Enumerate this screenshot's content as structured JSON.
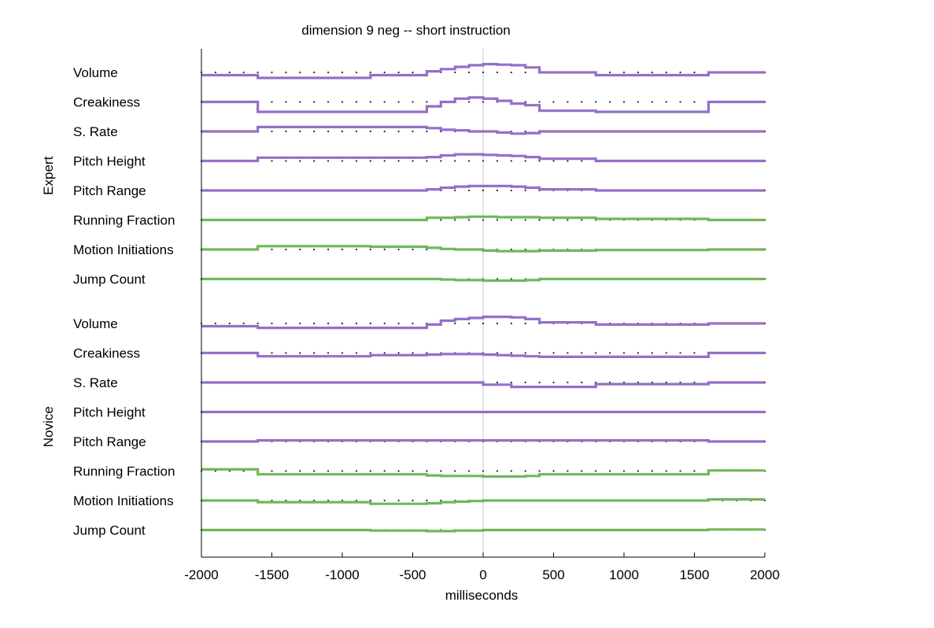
{
  "chart_data": {
    "type": "line",
    "title": "dimension 9 neg -- short instruction",
    "xlabel": "milliseconds",
    "xlim": [
      -2000,
      2000
    ],
    "xticks": [
      -2000,
      -1500,
      -1000,
      -500,
      0,
      500,
      1000,
      1500,
      2000
    ],
    "x_edges": [
      -2000,
      -1600,
      -800,
      -400,
      -300,
      -200,
      -100,
      0,
      100,
      200,
      300,
      400,
      800,
      1600,
      2000
    ],
    "zero_line": true,
    "colors": {
      "prosodic": "#9370c8",
      "motion": "#70b858",
      "dots": "#222222",
      "zero": "#c8c8c8"
    },
    "groups": [
      {
        "name": "Expert",
        "rows": [
          {
            "label": "Volume",
            "kind": "prosodic",
            "values": [
              -0.5,
              -1.0,
              -0.5,
              0.2,
              0.6,
              1.0,
              1.3,
              1.5,
              1.4,
              1.3,
              0.9,
              0.0,
              -0.5,
              0.0
            ]
          },
          {
            "label": "Creakiness",
            "kind": "prosodic",
            "values": [
              0.0,
              -1.8,
              -1.8,
              -0.8,
              0.0,
              0.6,
              0.8,
              0.6,
              0.2,
              -0.3,
              -0.6,
              -1.6,
              -1.8,
              0.0
            ]
          },
          {
            "label": "S. Rate",
            "kind": "prosodic",
            "values": [
              0.0,
              0.8,
              0.8,
              0.6,
              0.3,
              0.2,
              0.0,
              0.0,
              -0.2,
              -0.4,
              -0.3,
              0.0,
              0.0,
              0.0
            ]
          },
          {
            "label": "Pitch Height",
            "kind": "prosodic",
            "values": [
              0.0,
              0.6,
              0.6,
              0.7,
              1.0,
              1.2,
              1.2,
              1.1,
              1.0,
              0.9,
              0.7,
              0.4,
              0.0,
              0.0
            ]
          },
          {
            "label": "Pitch Range",
            "kind": "prosodic",
            "values": [
              0.0,
              0.0,
              0.0,
              0.2,
              0.5,
              0.7,
              0.8,
              0.8,
              0.8,
              0.7,
              0.5,
              0.2,
              0.0,
              0.0
            ]
          },
          {
            "label": "Running Fraction",
            "kind": "motion",
            "values": [
              0.0,
              0.0,
              0.0,
              0.4,
              0.4,
              0.5,
              0.6,
              0.6,
              0.5,
              0.5,
              0.5,
              0.4,
              0.2,
              0.0
            ]
          },
          {
            "label": "Motion Initiations",
            "kind": "motion",
            "values": [
              0.0,
              0.6,
              0.5,
              0.3,
              0.1,
              0.0,
              0.0,
              -0.2,
              -0.3,
              -0.3,
              -0.3,
              -0.2,
              -0.1,
              0.0
            ]
          },
          {
            "label": "Jump Count",
            "kind": "motion",
            "values": [
              0.0,
              0.0,
              0.0,
              0.0,
              -0.1,
              -0.2,
              -0.2,
              -0.3,
              -0.3,
              -0.3,
              -0.2,
              0.0,
              0.0,
              0.0
            ]
          }
        ]
      },
      {
        "name": "Novice",
        "rows": [
          {
            "label": "Volume",
            "kind": "prosodic",
            "values": [
              -0.5,
              -0.8,
              -0.8,
              -0.2,
              0.5,
              0.8,
              1.0,
              1.2,
              1.2,
              1.1,
              0.8,
              0.2,
              -0.2,
              0.0
            ]
          },
          {
            "label": "Creakiness",
            "kind": "prosodic",
            "values": [
              0.0,
              -0.6,
              -0.4,
              -0.3,
              -0.2,
              -0.2,
              -0.2,
              -0.3,
              -0.4,
              -0.5,
              -0.6,
              -0.7,
              -0.7,
              0.0
            ]
          },
          {
            "label": "S. Rate",
            "kind": "prosodic",
            "values": [
              0.0,
              0.0,
              0.0,
              0.0,
              0.0,
              0.0,
              0.0,
              -0.4,
              -0.4,
              -0.8,
              -0.8,
              -0.8,
              -0.3,
              0.0
            ]
          },
          {
            "label": "Pitch Height",
            "kind": "prosodic",
            "values": [
              0.0,
              0.0,
              0.0,
              0.0,
              0.0,
              0.0,
              0.0,
              0.0,
              0.0,
              0.0,
              0.0,
              0.0,
              0.0,
              0.0
            ]
          },
          {
            "label": "Pitch Range",
            "kind": "prosodic",
            "values": [
              0.0,
              0.2,
              0.2,
              0.2,
              0.2,
              0.2,
              0.2,
              0.2,
              0.2,
              0.2,
              0.2,
              0.2,
              0.2,
              0.0
            ]
          },
          {
            "label": "Running Fraction",
            "kind": "motion",
            "values": [
              0.3,
              -0.6,
              -0.6,
              -0.8,
              -0.9,
              -0.9,
              -0.9,
              -1.0,
              -1.0,
              -1.0,
              -0.9,
              -0.6,
              -0.6,
              0.1
            ]
          },
          {
            "label": "Motion Initiations",
            "kind": "motion",
            "values": [
              0.0,
              -0.3,
              -0.6,
              -0.5,
              -0.3,
              -0.2,
              -0.1,
              0.0,
              0.0,
              0.0,
              0.0,
              0.0,
              0.0,
              0.2
            ]
          },
          {
            "label": "Jump Count",
            "kind": "motion",
            "values": [
              0.0,
              0.0,
              -0.1,
              -0.2,
              -0.2,
              -0.1,
              -0.1,
              0.0,
              0.0,
              0.0,
              0.0,
              0.0,
              0.0,
              0.1
            ]
          }
        ]
      }
    ]
  }
}
